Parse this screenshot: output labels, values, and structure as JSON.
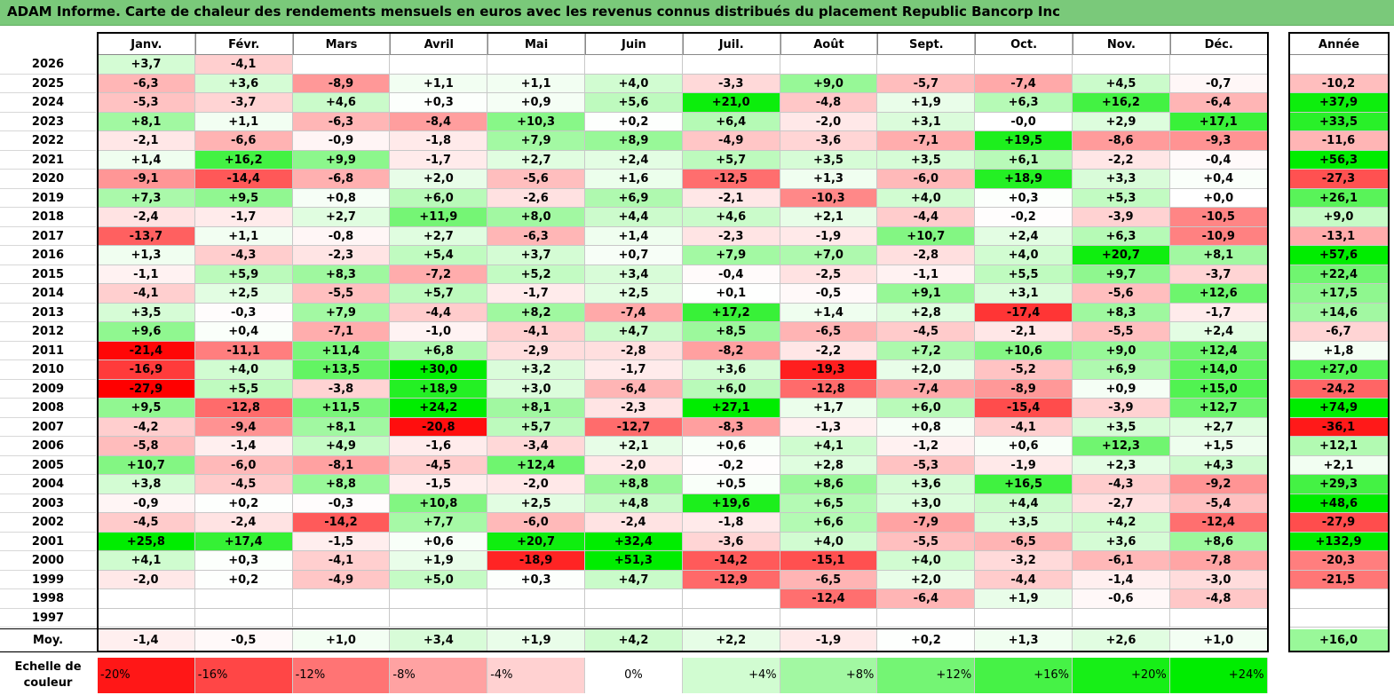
{
  "title": "ADAM Informe. Carte de chaleur des rendements mensuels en euros avec les revenus connus distribués du placement Republic Bancorp Inc",
  "colors": {
    "title_bg": "#7ac97a",
    "deep_red": "#ff0000",
    "deep_green": "#00ee00",
    "neutral": "#ffffff"
  },
  "chart_data": {
    "type": "heatmap",
    "title": "ADAM Informe. Carte de chaleur des rendements mensuels en euros avec les revenus connus distribués du placement Republic Bancorp Inc",
    "months": [
      "Janv.",
      "Févr.",
      "Mars",
      "Avril",
      "Mai",
      "Juin",
      "Juil.",
      "Août",
      "Sept.",
      "Oct.",
      "Nov.",
      "Déc."
    ],
    "year_header": "Année",
    "avg_label": "Moy.",
    "rows": [
      {
        "year": "2026",
        "m": [
          "+3,7",
          "-4,1",
          "",
          "",
          "",
          "",
          "",
          "",
          "",
          "",
          "",
          ""
        ],
        "y": ""
      },
      {
        "year": "2025",
        "m": [
          "-6,3",
          "+3,6",
          "-8,9",
          "+1,1",
          "+1,1",
          "+4,0",
          "-3,3",
          "+9,0",
          "-5,7",
          "-7,4",
          "+4,5",
          "-0,7"
        ],
        "y": "-10,2"
      },
      {
        "year": "2024",
        "m": [
          "-5,3",
          "-3,7",
          "+4,6",
          "+0,3",
          "+0,9",
          "+5,6",
          "+21,0",
          "-4,8",
          "+1,9",
          "+6,3",
          "+16,2",
          "-6,4"
        ],
        "y": "+37,9"
      },
      {
        "year": "2023",
        "m": [
          "+8,1",
          "+1,1",
          "-6,3",
          "-8,4",
          "+10,3",
          "+0,2",
          "+6,4",
          "-2,0",
          "+3,1",
          "-0,0",
          "+2,9",
          "+17,1"
        ],
        "y": "+33,5"
      },
      {
        "year": "2022",
        "m": [
          "-2,1",
          "-6,6",
          "-0,9",
          "-1,8",
          "+7,9",
          "+8,9",
          "-4,9",
          "-3,6",
          "-7,1",
          "+19,5",
          "-8,6",
          "-9,3"
        ],
        "y": "-11,6"
      },
      {
        "year": "2021",
        "m": [
          "+1,4",
          "+16,2",
          "+9,9",
          "-1,7",
          "+2,7",
          "+2,4",
          "+5,7",
          "+3,5",
          "+3,5",
          "+6,1",
          "-2,2",
          "-0,4"
        ],
        "y": "+56,3"
      },
      {
        "year": "2020",
        "m": [
          "-9,1",
          "-14,4",
          "-6,8",
          "+2,0",
          "-5,6",
          "+1,6",
          "-12,5",
          "+1,3",
          "-6,0",
          "+18,9",
          "+3,3",
          "+0,4"
        ],
        "y": "-27,3"
      },
      {
        "year": "2019",
        "m": [
          "+7,3",
          "+9,5",
          "+0,8",
          "+6,0",
          "-2,6",
          "+6,9",
          "-2,1",
          "-10,3",
          "+4,0",
          "+0,3",
          "+5,3",
          "+0,0"
        ],
        "y": "+26,1"
      },
      {
        "year": "2018",
        "m": [
          "-2,4",
          "-1,7",
          "+2,7",
          "+11,9",
          "+8,0",
          "+4,4",
          "+4,6",
          "+2,1",
          "-4,4",
          "-0,2",
          "-3,9",
          "-10,5"
        ],
        "y": "+9,0"
      },
      {
        "year": "2017",
        "m": [
          "-13,7",
          "+1,1",
          "-0,8",
          "+2,7",
          "-6,3",
          "+1,4",
          "-2,3",
          "-1,9",
          "+10,7",
          "+2,4",
          "+6,3",
          "-10,9"
        ],
        "y": "-13,1"
      },
      {
        "year": "2016",
        "m": [
          "+1,3",
          "-4,3",
          "-2,3",
          "+5,4",
          "+3,7",
          "+0,7",
          "+7,9",
          "+7,0",
          "-2,8",
          "+4,0",
          "+20,7",
          "+8,1"
        ],
        "y": "+57,6"
      },
      {
        "year": "2015",
        "m": [
          "-1,1",
          "+5,9",
          "+8,3",
          "-7,2",
          "+5,2",
          "+3,4",
          "-0,4",
          "-2,5",
          "-1,1",
          "+5,5",
          "+9,7",
          "-3,7"
        ],
        "y": "+22,4"
      },
      {
        "year": "2014",
        "m": [
          "-4,1",
          "+2,5",
          "-5,5",
          "+5,7",
          "-1,7",
          "+2,5",
          "+0,1",
          "-0,5",
          "+9,1",
          "+3,1",
          "-5,6",
          "+12,6"
        ],
        "y": "+17,5"
      },
      {
        "year": "2013",
        "m": [
          "+3,5",
          "-0,3",
          "+7,9",
          "-4,4",
          "+8,2",
          "-7,4",
          "+17,2",
          "+1,4",
          "+2,8",
          "-17,4",
          "+8,3",
          "-1,7"
        ],
        "y": "+14,6"
      },
      {
        "year": "2012",
        "m": [
          "+9,6",
          "+0,4",
          "-7,1",
          "-1,0",
          "-4,1",
          "+4,7",
          "+8,5",
          "-6,5",
          "-4,5",
          "-2,1",
          "-5,5",
          "+2,4"
        ],
        "y": "-6,7"
      },
      {
        "year": "2011",
        "m": [
          "-21,4",
          "-11,1",
          "+11,4",
          "+6,8",
          "-2,9",
          "-2,8",
          "-8,2",
          "-2,2",
          "+7,2",
          "+10,6",
          "+9,0",
          "+12,4"
        ],
        "y": "+1,8"
      },
      {
        "year": "2010",
        "m": [
          "-16,9",
          "+4,0",
          "+13,5",
          "+30,0",
          "+3,2",
          "-1,7",
          "+3,6",
          "-19,3",
          "+2,0",
          "-5,2",
          "+6,9",
          "+14,0"
        ],
        "y": "+27,0"
      },
      {
        "year": "2009",
        "m": [
          "-27,9",
          "+5,5",
          "-3,8",
          "+18,9",
          "+3,0",
          "-6,4",
          "+6,0",
          "-12,8",
          "-7,4",
          "-8,9",
          "+0,9",
          "+15,0"
        ],
        "y": "-24,2"
      },
      {
        "year": "2008",
        "m": [
          "+9,5",
          "-12,8",
          "+11,5",
          "+24,2",
          "+8,1",
          "-2,3",
          "+27,1",
          "+1,7",
          "+6,0",
          "-15,4",
          "-3,9",
          "+12,7"
        ],
        "y": "+74,9"
      },
      {
        "year": "2007",
        "m": [
          "-4,2",
          "-9,4",
          "+8,1",
          "-20,8",
          "+5,7",
          "-12,7",
          "-8,3",
          "-1,3",
          "+0,8",
          "-4,1",
          "+3,5",
          "+2,7"
        ],
        "y": "-36,1"
      },
      {
        "year": "2006",
        "m": [
          "-5,8",
          "-1,4",
          "+4,9",
          "-1,6",
          "-3,4",
          "+2,1",
          "+0,6",
          "+4,1",
          "-1,2",
          "+0,6",
          "+12,3",
          "+1,5"
        ],
        "y": "+12,1"
      },
      {
        "year": "2005",
        "m": [
          "+10,7",
          "-6,0",
          "-8,1",
          "-4,5",
          "+12,4",
          "-2,0",
          "-0,2",
          "+2,8",
          "-5,3",
          "-1,9",
          "+2,3",
          "+4,3"
        ],
        "y": "+2,1"
      },
      {
        "year": "2004",
        "m": [
          "+3,8",
          "-4,5",
          "+8,8",
          "-1,5",
          "-2,0",
          "+8,8",
          "+0,5",
          "+8,6",
          "+3,6",
          "+16,5",
          "-4,3",
          "-9,2"
        ],
        "y": "+29,3"
      },
      {
        "year": "2003",
        "m": [
          "-0,9",
          "+0,2",
          "-0,3",
          "+10,8",
          "+2,5",
          "+4,8",
          "+19,6",
          "+6,5",
          "+3,0",
          "+4,4",
          "-2,7",
          "-5,4"
        ],
        "y": "+48,6"
      },
      {
        "year": "2002",
        "m": [
          "-4,5",
          "-2,4",
          "-14,2",
          "+7,7",
          "-6,0",
          "-2,4",
          "-1,8",
          "+6,6",
          "-7,9",
          "+3,5",
          "+4,2",
          "-12,4"
        ],
        "y": "-27,9"
      },
      {
        "year": "2001",
        "m": [
          "+25,8",
          "+17,4",
          "-1,5",
          "+0,6",
          "+20,7",
          "+32,4",
          "-3,6",
          "+4,0",
          "-5,5",
          "-6,5",
          "+3,6",
          "+8,6"
        ],
        "y": "+132,9"
      },
      {
        "year": "2000",
        "m": [
          "+4,1",
          "+0,3",
          "-4,1",
          "+1,9",
          "-18,9",
          "+51,3",
          "-14,2",
          "-15,1",
          "+4,0",
          "-3,2",
          "-6,1",
          "-7,8"
        ],
        "y": "-20,3"
      },
      {
        "year": "1999",
        "m": [
          "-2,0",
          "+0,2",
          "-4,9",
          "+5,0",
          "+0,3",
          "+4,7",
          "-12,9",
          "-6,5",
          "+2,0",
          "-4,4",
          "-1,4",
          "-3,0"
        ],
        "y": "-21,5"
      },
      {
        "year": "1998",
        "m": [
          "",
          "",
          "",
          "",
          "",
          "",
          "",
          "-12,4",
          "-6,4",
          "+1,9",
          "-0,6",
          "-4,8"
        ],
        "y": ""
      },
      {
        "year": "1997",
        "m": [
          "",
          "",
          "",
          "",
          "",
          "",
          "",
          "",
          "",
          "",
          "",
          ""
        ],
        "y": ""
      }
    ],
    "average": {
      "m": [
        "-1,4",
        "-0,5",
        "+1,0",
        "+3,4",
        "+1,9",
        "+4,2",
        "+2,2",
        "-1,9",
        "+0,2",
        "+1,3",
        "+2,6",
        "+1,0"
      ],
      "y": "+16,0"
    },
    "scale": {
      "label_line1": "Echelle de",
      "label_line2": "couleur",
      "items": [
        "-20%",
        "-16%",
        "-12%",
        "-8%",
        "-4%",
        "0%",
        "+4%",
        "+8%",
        "+12%",
        "+16%",
        "+20%",
        "+24%"
      ],
      "values": [
        -20,
        -16,
        -12,
        -8,
        -4,
        0,
        4,
        8,
        12,
        16,
        20,
        24
      ]
    }
  }
}
